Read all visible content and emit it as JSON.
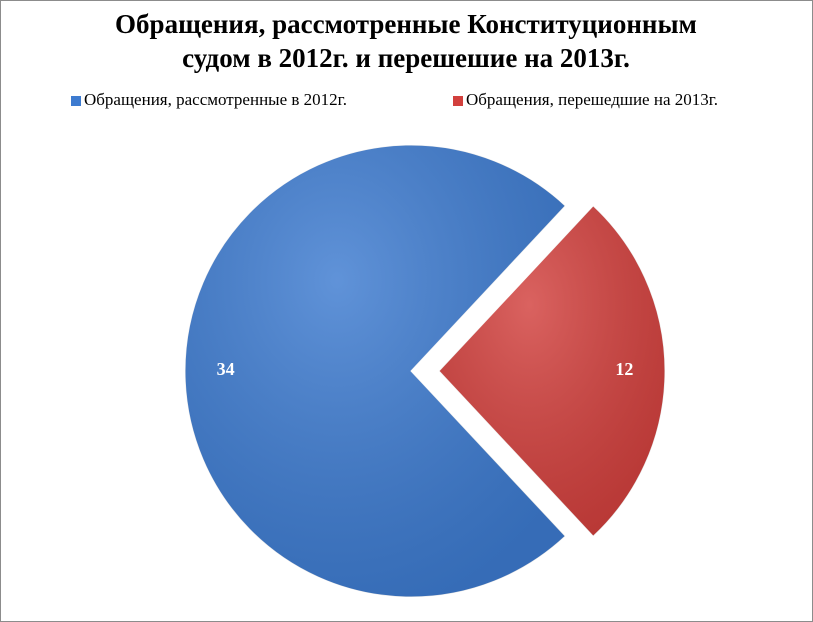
{
  "chart_data": {
    "type": "pie",
    "title": "Обращения, рассмотренные Конституционным судом в 2012г. и перешешие на 2013г.",
    "categories": [
      "Обращения, рассмотренные в 2012г.",
      "Обращения, перешедшие на 2013г."
    ],
    "values": [
      34,
      12
    ],
    "colors": [
      "#3d7bd0",
      "#d2403d"
    ],
    "legend": "top"
  }
}
